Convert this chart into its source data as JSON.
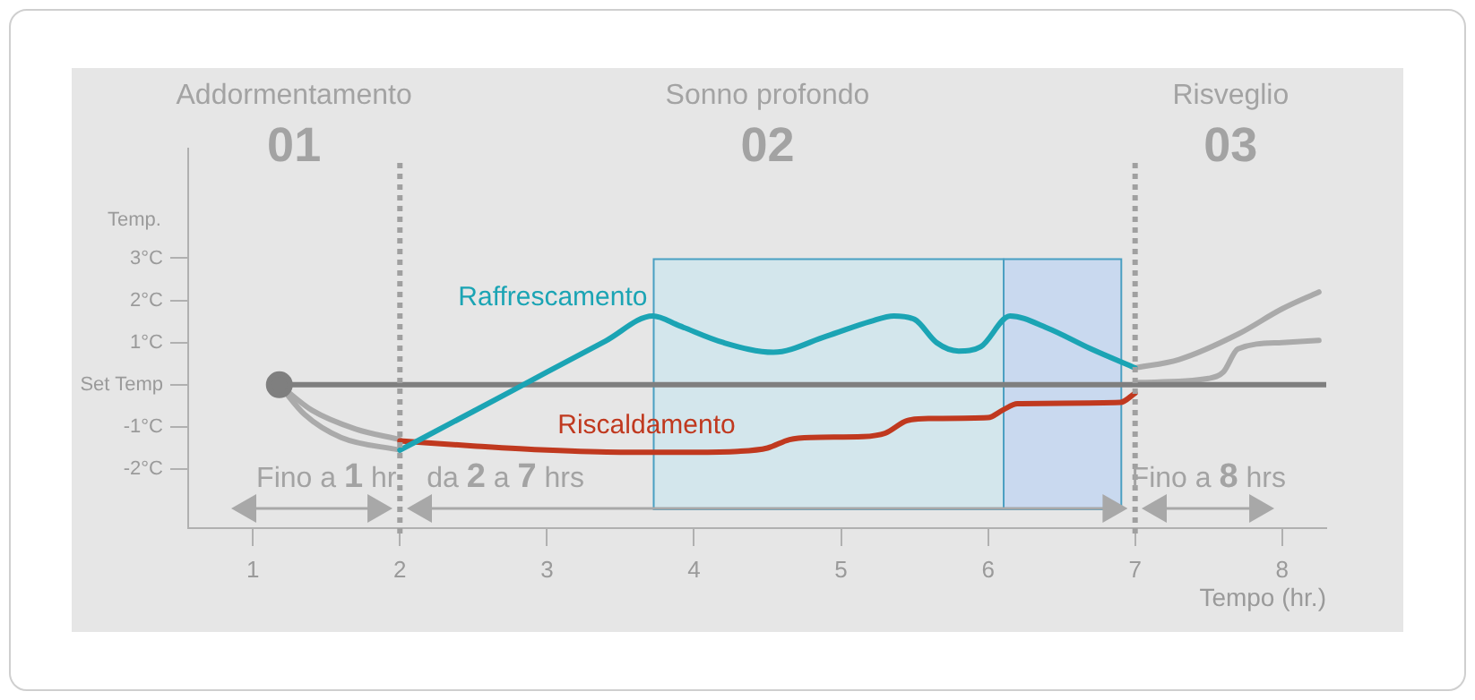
{
  "chart_data": {
    "type": "line",
    "xlabel": "Tempo (hr.)",
    "ylabel": "Temp.",
    "xlim": [
      0.56,
      8.3
    ],
    "xticks": [
      1,
      2,
      3,
      4,
      5,
      6,
      7,
      8
    ],
    "ylim": [
      -3.4,
      5.6
    ],
    "yticks": [
      {
        "value": -2,
        "label": "-2°C"
      },
      {
        "value": -1,
        "label": "-1°C"
      },
      {
        "value": 0,
        "label": "Set Temp"
      },
      {
        "value": 1,
        "label": "1°C"
      },
      {
        "value": 2,
        "label": "2°C"
      },
      {
        "value": 3,
        "label": "3°C"
      }
    ],
    "grid": false,
    "legend": false,
    "marker": "none",
    "line_style": "solid",
    "series": [
      {
        "name": "Raffrescamento",
        "color": "#1ba4b4",
        "x": [
          2,
          2.5,
          3,
          3.4,
          3.72,
          3.9,
          4.2,
          4.54,
          4.9,
          5.2,
          5.36,
          5.5,
          5.65,
          5.8,
          5.95,
          6.15,
          6.4,
          6.7,
          7
        ],
        "values": [
          -1.55,
          -0.63,
          0.3,
          1.04,
          1.63,
          1.4,
          1.0,
          0.77,
          1.15,
          1.5,
          1.63,
          1.55,
          1.0,
          0.8,
          0.9,
          1.63,
          1.35,
          0.85,
          0.4
        ]
      },
      {
        "name": "Riscaldamento",
        "color": "#c0391f",
        "x": [
          2,
          2.5,
          3,
          3.5,
          4,
          4.3,
          4.5,
          4.65,
          4.8,
          5.15,
          5.3,
          5.45,
          5.6,
          6,
          6.1,
          6.2,
          6.9,
          7
        ],
        "values": [
          -1.33,
          -1.45,
          -1.55,
          -1.6,
          -1.6,
          -1.58,
          -1.5,
          -1.3,
          -1.25,
          -1.23,
          -1.15,
          -0.85,
          -0.8,
          -0.78,
          -0.6,
          -0.45,
          -0.42,
          -0.2
        ]
      },
      {
        "color": "#7f7f7f",
        "marker": "circle",
        "x": [
          1.18,
          8.3
        ],
        "values": [
          0,
          0
        ]
      },
      {
        "color": "#aaaaaa",
        "x": [
          1.18,
          1.4,
          1.7,
          2
        ],
        "values": [
          0,
          -0.6,
          -1.05,
          -1.3
        ]
      },
      {
        "color": "#aaaaaa",
        "x": [
          1.18,
          1.35,
          1.6,
          2
        ],
        "values": [
          0,
          -0.7,
          -1.25,
          -1.55
        ]
      },
      {
        "color": "#aaaaaa",
        "x": [
          7,
          7.3,
          7.7,
          8,
          8.25
        ],
        "values": [
          0.4,
          0.6,
          1.2,
          1.8,
          2.2
        ]
      },
      {
        "color": "#aaaaaa",
        "x": [
          7,
          7.5,
          7.6,
          7.7,
          8,
          8.25
        ],
        "values": [
          0.05,
          0.15,
          0.3,
          0.85,
          1.0,
          1.05
        ]
      }
    ],
    "bands": [
      {
        "axis": "x",
        "from": 3.72,
        "to": 6.1,
        "color": "#d3e6ec"
      },
      {
        "axis": "x",
        "from": 6.1,
        "to": 6.9,
        "color": "#c9d9ef"
      }
    ],
    "ref_lines": [
      {
        "axis": "x",
        "value": 2,
        "line_style": "dotted",
        "color": "#a0a0a0"
      },
      {
        "axis": "x",
        "value": 7,
        "line_style": "dotted",
        "color": "#a0a0a0"
      }
    ],
    "annotations": [
      "Addormentamento",
      "01",
      "Sonno profondo",
      "02",
      "Risveglio",
      "03",
      "Fino a 1 hr",
      "da 2 a 7 hrs",
      "Fino a 8 hrs"
    ]
  }
}
